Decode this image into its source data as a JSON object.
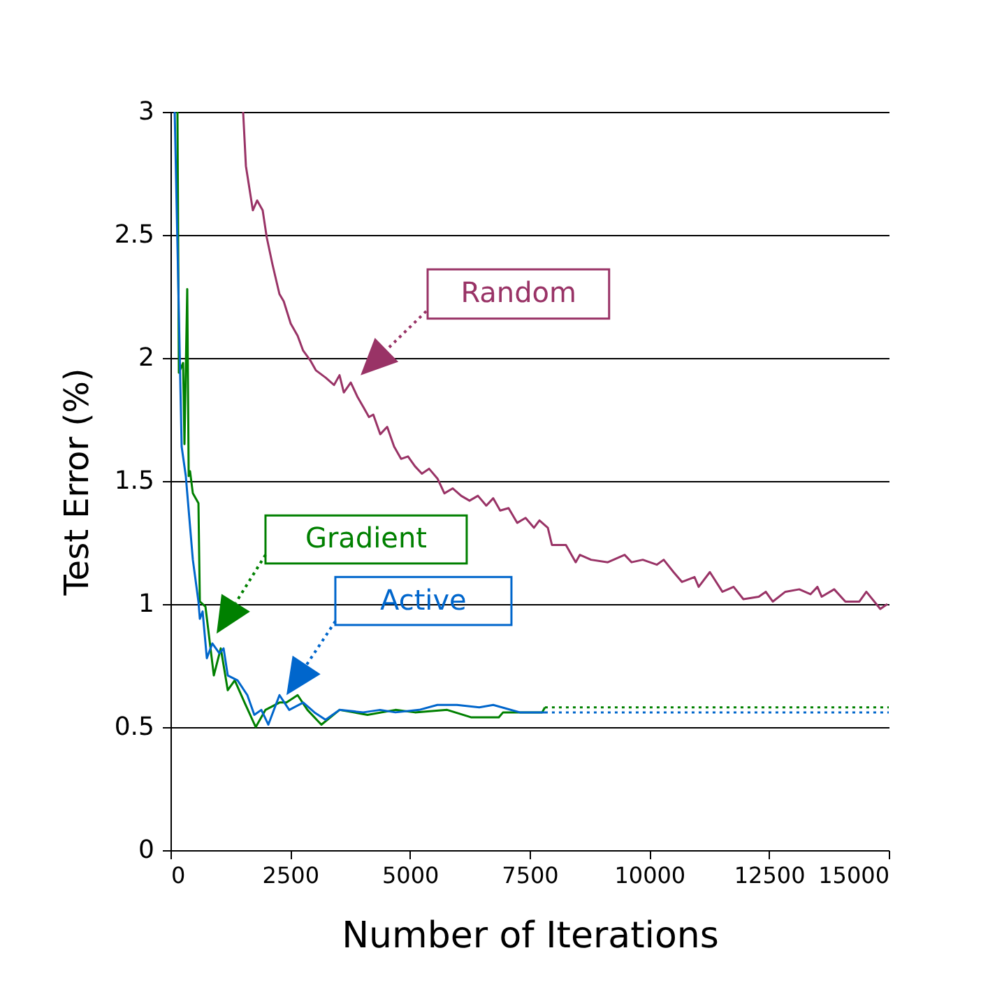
{
  "chart_data": {
    "type": "line",
    "xlabel": "Number of Iterations",
    "ylabel": "Test Error (%)",
    "xlim": [
      0,
      15000
    ],
    "xticks": [
      0,
      2500,
      5000,
      7500,
      10000,
      12500,
      15000
    ],
    "ylim": [
      0,
      3
    ],
    "yticks": [
      0,
      0.5,
      1,
      1.5,
      2,
      2.5,
      3
    ],
    "grid": "y",
    "line_style": "solid",
    "series": [
      {
        "name": "Random",
        "color": "#993366",
        "x": [
          1517,
          1575,
          1720,
          1810,
          1925,
          2010,
          2130,
          2275,
          2365,
          2510,
          2655,
          2770,
          2920,
          3035,
          3240,
          3415,
          3530,
          3620,
          3765,
          3910,
          4030,
          4145,
          4235,
          4380,
          4525,
          4670,
          4815,
          4960,
          5105,
          5250,
          5400,
          5575,
          5720,
          5895,
          6070,
          6245,
          6420,
          6595,
          6740,
          6885,
          7060,
          7240,
          7415,
          7590,
          7705,
          7880,
          7966,
          8258,
          8462,
          8550,
          8783,
          9133,
          9484,
          9630,
          9863,
          10155,
          10300,
          10505,
          10680,
          10943,
          11030,
          11264,
          11526,
          11760,
          11964,
          12285,
          12431,
          12577,
          12840,
          13131,
          13365,
          13510,
          13598,
          13860,
          14094,
          14386,
          14532,
          14823,
          14970
        ],
        "values": [
          3,
          2.78,
          2.6,
          2.64,
          2.6,
          2.49,
          2.38,
          2.26,
          2.23,
          2.14,
          2.09,
          2.03,
          1.99,
          1.95,
          1.92,
          1.89,
          1.93,
          1.86,
          1.9,
          1.84,
          1.8,
          1.76,
          1.77,
          1.69,
          1.72,
          1.64,
          1.59,
          1.6,
          1.56,
          1.53,
          1.55,
          1.51,
          1.45,
          1.47,
          1.44,
          1.42,
          1.44,
          1.4,
          1.43,
          1.38,
          1.39,
          1.33,
          1.35,
          1.31,
          1.34,
          1.31,
          1.24,
          1.24,
          1.17,
          1.2,
          1.18,
          1.17,
          1.2,
          1.17,
          1.18,
          1.16,
          1.18,
          1.13,
          1.09,
          1.11,
          1.07,
          1.13,
          1.05,
          1.07,
          1.02,
          1.03,
          1.05,
          1.01,
          1.05,
          1.06,
          1.04,
          1.07,
          1.03,
          1.06,
          1.01,
          1.01,
          1.05,
          0.98,
          1
        ]
      },
      {
        "name": "Gradient",
        "color": "#008000",
        "x": [
          146,
          175,
          263,
          292,
          350,
          380,
          408,
          467,
          584,
          613,
          730,
          905,
          1050,
          1196,
          1342,
          1547,
          1780,
          1984,
          2276,
          2422,
          2655,
          2860,
          3151,
          3530,
          4114,
          4698,
          5106,
          5778,
          6274,
          6857,
          6945,
          7762,
          7820
        ],
        "values": [
          3,
          1.94,
          1.98,
          1.65,
          2.28,
          1.52,
          1.54,
          1.45,
          1.41,
          1.01,
          0.99,
          0.71,
          0.82,
          0.65,
          0.69,
          0.6,
          0.5,
          0.57,
          0.6,
          0.6,
          0.63,
          0.57,
          0.51,
          0.57,
          0.55,
          0.57,
          0.56,
          0.57,
          0.54,
          0.54,
          0.56,
          0.56,
          0.58
        ]
      },
      {
        "name": "Active",
        "color": "#0066cc",
        "x": [
          88,
          233,
          320,
          467,
          584,
          613,
          671,
          759,
          875,
          1021,
          1109,
          1196,
          1400,
          1605,
          1751,
          1897,
          2043,
          2276,
          2480,
          2772,
          3006,
          3239,
          3530,
          4027,
          4377,
          4698,
          5194,
          5573,
          5982,
          6449,
          6740,
          7295,
          7820
        ],
        "values": [
          3,
          1.64,
          1.52,
          1.18,
          1.01,
          0.94,
          0.97,
          0.78,
          0.84,
          0.8,
          0.82,
          0.71,
          0.69,
          0.63,
          0.55,
          0.57,
          0.51,
          0.63,
          0.57,
          0.6,
          0.56,
          0.53,
          0.57,
          0.56,
          0.57,
          0.56,
          0.57,
          0.59,
          0.59,
          0.58,
          0.59,
          0.56,
          0.56
        ]
      },
      {
        "color": "#008000",
        "line_style": "dotted",
        "x": [
          7820,
          15000
        ],
        "values": [
          0.58,
          0.58
        ]
      },
      {
        "color": "#0066cc",
        "line_style": "dotted",
        "x": [
          7820,
          15000
        ],
        "values": [
          0.56,
          0.56
        ]
      }
    ]
  }
}
